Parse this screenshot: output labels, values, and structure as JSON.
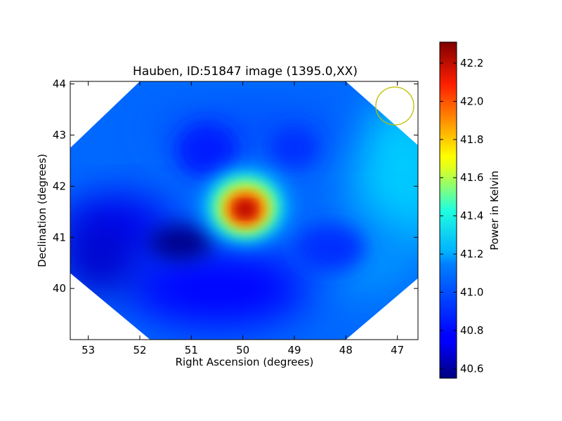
{
  "chart_data": {
    "type": "heatmap",
    "title": "Hauben, ID:51847 image (1395.0,XX)",
    "xlabel": "Right Ascension (degrees)",
    "ylabel": "Declination (degrees)",
    "x_reversed": true,
    "xlim": [
      53.35,
      46.6
    ],
    "ylim": [
      39.0,
      44.05
    ],
    "x_ticks": [
      53,
      52,
      51,
      50,
      49,
      48,
      47
    ],
    "y_ticks": [
      40,
      41,
      42,
      43,
      44
    ],
    "colorbar": {
      "label": "Power in Kelvin",
      "range": [
        40.55,
        42.31
      ],
      "ticks": [
        "40.6",
        "40.8",
        "41.0",
        "41.2",
        "41.4",
        "41.6",
        "41.8",
        "42.0",
        "42.2"
      ],
      "colormap": "jet"
    },
    "footprint": [
      [
        53.35,
        42.75
      ],
      [
        52.0,
        44.05
      ],
      [
        48.0,
        44.05
      ],
      [
        46.6,
        42.8
      ],
      [
        46.6,
        40.2
      ],
      [
        48.0,
        39.0
      ],
      [
        51.8,
        39.0
      ],
      [
        53.35,
        40.3
      ]
    ],
    "background_level": 40.95,
    "features": [
      {
        "ra": 49.95,
        "dec": 41.55,
        "level": 42.3,
        "kind": "peak"
      },
      {
        "ra": 51.2,
        "dec": 40.9,
        "level": 40.57,
        "kind": "minimum"
      },
      {
        "ra": 52.8,
        "dec": 40.6,
        "level": 40.68,
        "kind": "minimum"
      },
      {
        "ra": 47.0,
        "dec": 42.3,
        "level": 41.12,
        "kind": "maximum"
      }
    ],
    "beam_circle": {
      "ra": 47.05,
      "dec": 43.57,
      "color": "#bfbf00"
    }
  }
}
